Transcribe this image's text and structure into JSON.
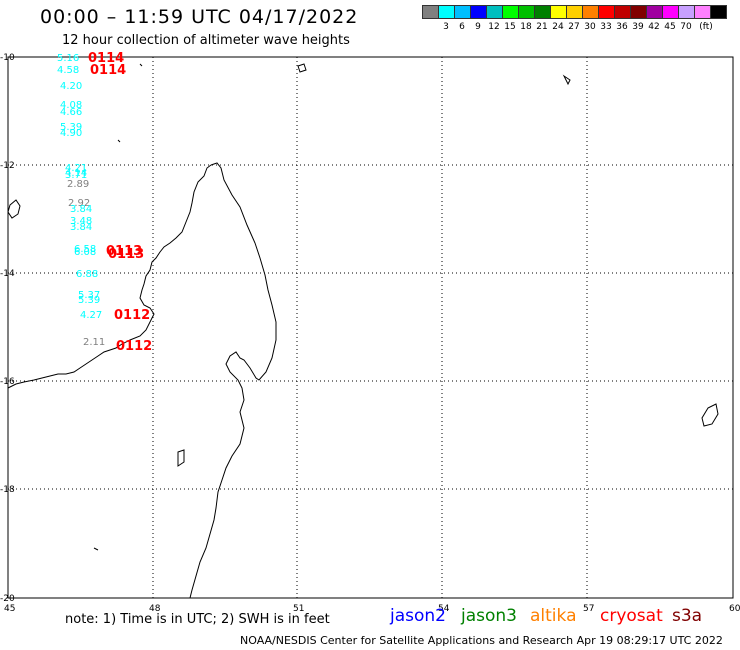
{
  "header": {
    "title": "00:00 – 11:59 UTC 04/17/2022",
    "subtitle": "12 hour collection of altimeter wave heights"
  },
  "colorbar": {
    "unit": "(ft)",
    "colors": [
      "#808080",
      "#00ffff",
      "#00bfff",
      "#0000ff",
      "#00bfbf",
      "#00ff00",
      "#00c000",
      "#008000",
      "#ffff00",
      "#ffd000",
      "#ff8000",
      "#ff0000",
      "#c00000",
      "#800000",
      "#a000a0",
      "#ff00ff",
      "#c8a0ff",
      "#ff80ff",
      "#000000"
    ],
    "labels": [
      "3",
      "6",
      "9",
      "12",
      "15",
      "18",
      "21",
      "24",
      "27",
      "30",
      "33",
      "36",
      "39",
      "42",
      "45",
      "70"
    ]
  },
  "map": {
    "lon_ticks": [
      "45",
      "48",
      "51",
      "54",
      "57",
      "60"
    ],
    "lat_ticks": [
      "-10",
      "-12",
      "-14",
      "-16",
      "-18",
      "-20"
    ],
    "gridlines": "dotted",
    "wave_heights": [
      {
        "value": "5.16",
        "color": "#00ffff"
      },
      {
        "value": "4.58",
        "color": "#00ffff"
      },
      {
        "value": "4.20",
        "color": "#00ffff"
      },
      {
        "value": "4.08",
        "color": "#00ffff"
      },
      {
        "value": "4.66",
        "color": "#00ffff"
      },
      {
        "value": "5.39",
        "color": "#00ffff"
      },
      {
        "value": "4.90",
        "color": "#00ffff"
      },
      {
        "value": "4.21",
        "color": "#00ffff"
      },
      {
        "value": "4.14",
        "color": "#00ffff"
      },
      {
        "value": "3.71",
        "color": "#00ffff"
      },
      {
        "value": "2.89",
        "color": "#808080"
      },
      {
        "value": "2.92",
        "color": "#808080"
      },
      {
        "value": "3.84",
        "color": "#00ffff"
      },
      {
        "value": "3.48",
        "color": "#00ffff"
      },
      {
        "value": "3.84",
        "color": "#00ffff"
      },
      {
        "value": "6.58",
        "color": "#00ffff"
      },
      {
        "value": "6.08",
        "color": "#00ffff"
      },
      {
        "value": "6.88",
        "color": "#00ffff"
      },
      {
        "value": "5.37",
        "color": "#00ffff"
      },
      {
        "value": "5.39",
        "color": "#00ffff"
      },
      {
        "value": "4.27",
        "color": "#00ffff"
      },
      {
        "value": "2.11",
        "color": "#808080"
      }
    ],
    "pass_times": [
      {
        "value": "0114",
        "color": "#ff0000"
      },
      {
        "value": "0114",
        "color": "#ff0000"
      },
      {
        "value": "0113",
        "color": "#ff0000"
      },
      {
        "value": "0113",
        "color": "#ff0000"
      },
      {
        "value": "0112",
        "color": "#ff0000"
      },
      {
        "value": "0112",
        "color": "#ff0000"
      }
    ]
  },
  "note": "note: 1) Time is in UTC; 2) SWH is in feet",
  "satellites": [
    {
      "name": "jason2",
      "color": "#0000ff"
    },
    {
      "name": "jason3",
      "color": "#008000"
    },
    {
      "name": "altika",
      "color": "#ff8000"
    },
    {
      "name": "cryosat",
      "color": "#ff0000"
    },
    {
      "name": "s3a",
      "color": "#800000"
    }
  ],
  "footer": "NOAA/NESDIS Center for Satellite Applications and Research   Apr 19 08:29:17 UTC 2022"
}
